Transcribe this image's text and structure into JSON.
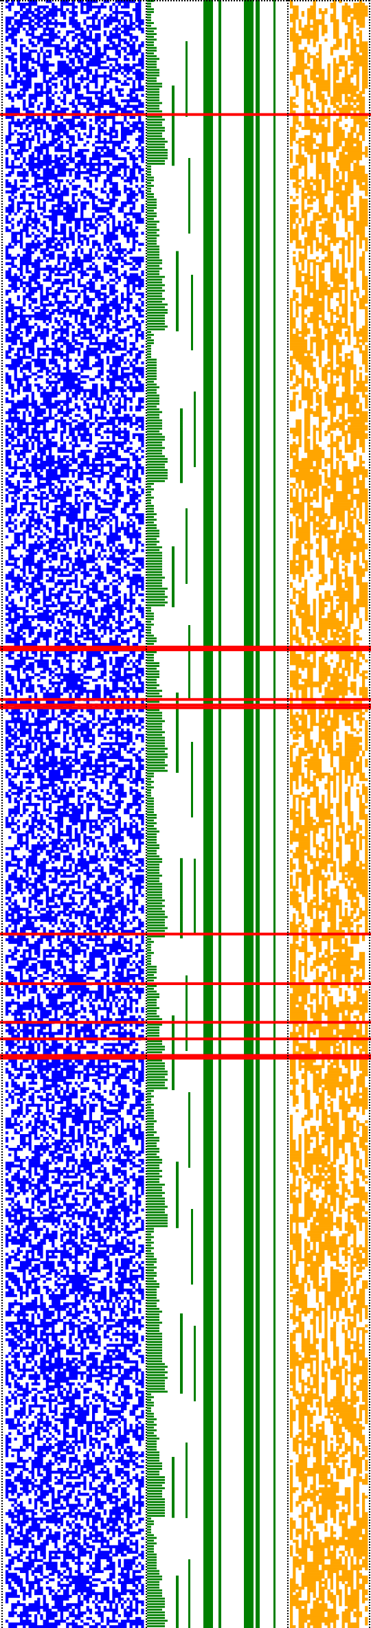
{
  "figure": {
    "kind": "binary-pattern-visualization",
    "background": "#ffffff",
    "rows_approx": 590,
    "panels": [
      {
        "name": "blue-noise-panel",
        "color": "#0000ff",
        "density": 0.56
      },
      {
        "name": "green-staircase-panel",
        "color": "#008000",
        "density": 1.0
      },
      {
        "name": "green-bar-panel",
        "color": "#008000",
        "density": 1.0
      },
      {
        "name": "orange-noise-panel",
        "color": "#ffa500",
        "density": 0.62
      }
    ],
    "separators": {
      "style": "dotted",
      "color": "#000000"
    },
    "highlight": {
      "color": "#ff0000",
      "rows_approx": [
        41,
        234,
        235,
        253,
        255,
        256,
        338,
        356,
        370,
        376,
        382,
        383
      ]
    }
  }
}
